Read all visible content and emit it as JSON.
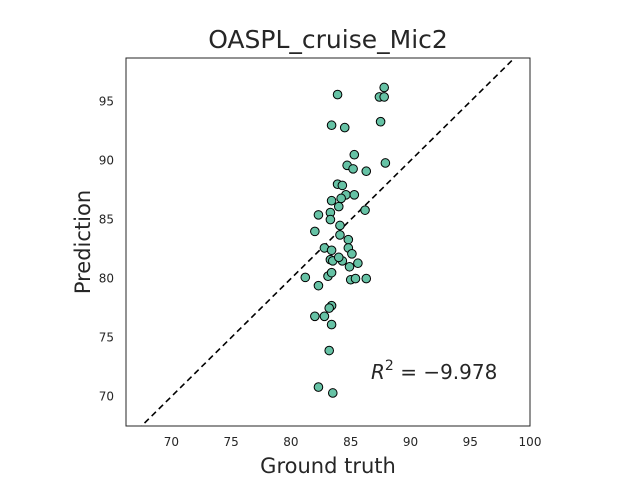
{
  "chart_data": {
    "type": "scatter",
    "title": "OASPL_cruise_Mic2",
    "xlabel": "Ground truth",
    "ylabel": "Prediction",
    "xlim": [
      66.2,
      100.0
    ],
    "ylim": [
      67.5,
      98.7
    ],
    "xticks": [
      70,
      75,
      80,
      85,
      90,
      95,
      100
    ],
    "yticks": [
      70,
      75,
      80,
      85,
      90,
      95
    ],
    "grid": false,
    "annotation": {
      "prefix": "R",
      "superscript": "2",
      "text": " = −9.978",
      "pos": [
        86.7,
        71.5
      ]
    },
    "reference_line": {
      "type": "y=x",
      "style": "dashed",
      "color": "#000000"
    },
    "point_color": "#66c2a5",
    "point_edge": "#000000",
    "points": [
      [
        87.8,
        96.2
      ],
      [
        83.9,
        95.6
      ],
      [
        87.4,
        95.4
      ],
      [
        87.8,
        95.4
      ],
      [
        83.4,
        93.0
      ],
      [
        84.5,
        92.8
      ],
      [
        87.5,
        93.3
      ],
      [
        85.3,
        90.5
      ],
      [
        84.7,
        89.6
      ],
      [
        85.2,
        89.3
      ],
      [
        86.3,
        89.1
      ],
      [
        87.9,
        89.8
      ],
      [
        83.9,
        88.0
      ],
      [
        84.3,
        87.9
      ],
      [
        84.6,
        87.1
      ],
      [
        84.2,
        86.8
      ],
      [
        85.3,
        87.1
      ],
      [
        83.4,
        86.6
      ],
      [
        84.0,
        86.1
      ],
      [
        83.3,
        85.6
      ],
      [
        82.3,
        85.4
      ],
      [
        86.2,
        85.8
      ],
      [
        83.3,
        85.0
      ],
      [
        82.0,
        84.0
      ],
      [
        84.1,
        84.5
      ],
      [
        84.1,
        83.7
      ],
      [
        84.8,
        83.3
      ],
      [
        82.8,
        82.6
      ],
      [
        83.4,
        82.4
      ],
      [
        84.8,
        82.6
      ],
      [
        85.1,
        82.1
      ],
      [
        83.3,
        81.6
      ],
      [
        83.5,
        81.5
      ],
      [
        84.3,
        81.5
      ],
      [
        84.0,
        81.8
      ],
      [
        84.9,
        81.0
      ],
      [
        85.6,
        81.3
      ],
      [
        83.1,
        80.2
      ],
      [
        83.4,
        80.5
      ],
      [
        81.2,
        80.1
      ],
      [
        85.0,
        79.9
      ],
      [
        85.4,
        80.0
      ],
      [
        86.3,
        80.0
      ],
      [
        82.3,
        79.4
      ],
      [
        83.4,
        77.7
      ],
      [
        83.2,
        77.5
      ],
      [
        82.0,
        76.8
      ],
      [
        82.8,
        76.8
      ],
      [
        83.4,
        76.1
      ],
      [
        83.2,
        73.9
      ],
      [
        82.3,
        70.8
      ],
      [
        83.5,
        70.3
      ]
    ]
  }
}
